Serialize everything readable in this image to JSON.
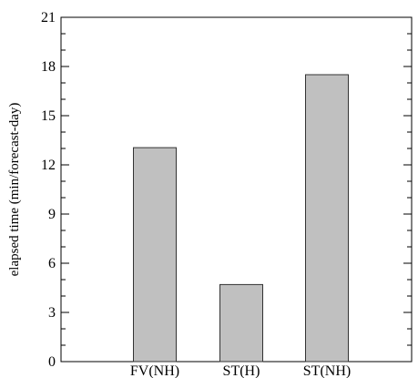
{
  "chart_data": {
    "type": "bar",
    "categories": [
      "FV(NH)",
      "ST(H)",
      "ST(NH)"
    ],
    "values": [
      13.05,
      4.7,
      17.5
    ],
    "xlabel": "",
    "ylabel": "elapsed time (min/forecast-day)",
    "ylim": [
      0,
      21
    ],
    "y_ticks": [
      0,
      3,
      6,
      9,
      12,
      15,
      18,
      21
    ],
    "grid": false,
    "colors": {
      "bar_fill": "#c0c0c0",
      "bar_stroke": "#333333",
      "axis": "#000000",
      "background": "#ffffff"
    }
  }
}
